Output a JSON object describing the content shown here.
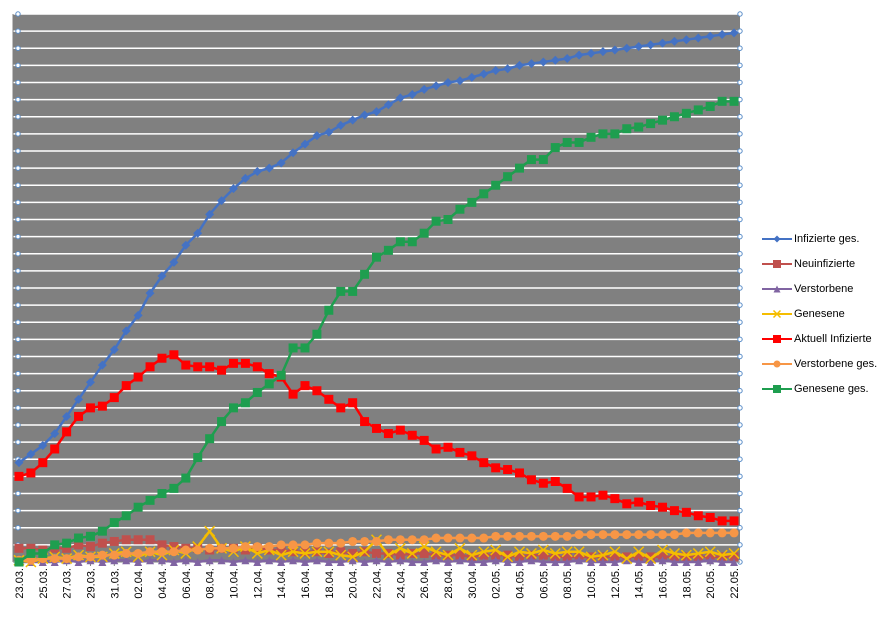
{
  "chart_data": {
    "type": "line",
    "grid": true,
    "legend_position": "right",
    "x_tick_labels": [
      "23.03.",
      "25.03.",
      "27.03.",
      "29.03.",
      "31.03.",
      "02.04.",
      "04.04.",
      "06.04.",
      "08.04.",
      "10.04.",
      "12.04.",
      "14.04.",
      "16.04.",
      "18.04.",
      "20.04.",
      "22.04.",
      "24.04.",
      "26.04.",
      "28.04.",
      "30.04.",
      "02.05.",
      "04.05.",
      "06.05.",
      "08.05.",
      "10.05.",
      "12.05.",
      "14.05.",
      "16.05.",
      "18.05.",
      "20.05.",
      "22.05."
    ],
    "x_start": "23.03.",
    "x_count": 61,
    "ylim": [
      0,
      32
    ],
    "series": [
      {
        "name": "Infizierte ges.",
        "color": "#4472C4",
        "marker": "diamond",
        "values": [
          5.8,
          6.3,
          6.8,
          7.5,
          8.5,
          9.5,
          10.5,
          11.5,
          12.4,
          13.5,
          14.4,
          15.7,
          16.7,
          17.5,
          18.5,
          19.2,
          20.3,
          21.1,
          21.8,
          22.4,
          22.8,
          23.0,
          23.3,
          23.9,
          24.4,
          24.9,
          25.1,
          25.5,
          25.8,
          26.1,
          26.3,
          26.7,
          27.1,
          27.3,
          27.6,
          27.8,
          28.0,
          28.1,
          28.3,
          28.5,
          28.7,
          28.8,
          29.0,
          29.1,
          29.2,
          29.3,
          29.4,
          29.6,
          29.7,
          29.8,
          29.9,
          30.0,
          30.1,
          30.2,
          30.3,
          30.4,
          30.5,
          30.6,
          30.7,
          30.8,
          30.9
        ]
      },
      {
        "name": "Neuinfizierte",
        "color": "#C0504D",
        "marker": "square",
        "values": [
          0.8,
          0.8,
          0.7,
          0.8,
          0.8,
          1.0,
          0.9,
          1.1,
          1.2,
          1.3,
          1.3,
          1.3,
          1.0,
          0.9,
          0.8,
          0.8,
          0.7,
          0.8,
          0.8,
          0.7,
          0.8,
          0.7,
          0.7,
          0.6,
          0.6,
          0.6,
          0.5,
          0.6,
          0.5,
          0.6,
          0.5,
          0.5,
          0.4,
          0.5,
          0.5,
          0.4,
          0.4,
          0.4,
          0.3,
          0.4,
          0.4,
          0.4,
          0.3,
          0.4,
          0.4,
          0.3,
          0.3,
          0.3,
          0.3,
          0.3,
          0.3,
          0.3,
          0.3,
          0.3,
          0.3,
          0.3,
          0.3,
          0.3,
          0.3,
          0.3,
          0.3
        ]
      },
      {
        "name": "Verstorbene",
        "color": "#8064A2",
        "marker": "triangle",
        "values": [
          0.0,
          0.0,
          0.0,
          0.0,
          0.1,
          0.0,
          0.1,
          0.0,
          0.1,
          0.1,
          0.0,
          0.1,
          0.1,
          0.0,
          0.1,
          0.0,
          0.1,
          0.1,
          0.0,
          0.1,
          0.0,
          0.1,
          0.0,
          0.1,
          0.0,
          0.1,
          0.0,
          0.0,
          0.1,
          0.0,
          0.1,
          0.0,
          0.1,
          0.0,
          0.0,
          0.1,
          0.0,
          0.1,
          0.0,
          0.0,
          0.1,
          0.0,
          0.0,
          0.1,
          0.0,
          0.0,
          0.0,
          0.1,
          0.0,
          0.0,
          0.0,
          0.1,
          0.0,
          0.0,
          0.1,
          0.0,
          0.0,
          0.0,
          0.1,
          0.0,
          0.0
        ]
      },
      {
        "name": "Genesene",
        "color": "#F5BD00",
        "marker": "x",
        "values": [
          0.1,
          0.0,
          0.2,
          0.3,
          0.2,
          0.4,
          0.3,
          0.3,
          0.5,
          0.6,
          0.3,
          0.6,
          0.4,
          0.7,
          0.5,
          0.9,
          1.8,
          0.8,
          0.6,
          0.9,
          0.5,
          0.7,
          0.4,
          0.6,
          0.5,
          0.6,
          0.6,
          0.4,
          0.3,
          0.6,
          1.3,
          0.4,
          0.8,
          0.5,
          0.9,
          0.6,
          0.4,
          0.8,
          0.4,
          0.6,
          0.7,
          0.3,
          0.6,
          0.5,
          0.7,
          0.5,
          0.6,
          0.6,
          0.3,
          0.4,
          0.6,
          0.2,
          0.6,
          0.2,
          0.7,
          0.5,
          0.4,
          0.5,
          0.6,
          0.4,
          0.5
        ]
      },
      {
        "name": "Aktuell Infizierte",
        "color": "#FF0000",
        "marker": "square",
        "values": [
          5.0,
          5.2,
          5.8,
          6.6,
          7.6,
          8.5,
          9.0,
          9.1,
          9.6,
          10.3,
          10.8,
          11.4,
          11.9,
          12.1,
          11.5,
          11.4,
          11.4,
          11.2,
          11.6,
          11.6,
          11.4,
          11.0,
          10.8,
          9.8,
          10.3,
          10.0,
          9.5,
          9.0,
          9.3,
          8.2,
          7.8,
          7.5,
          7.7,
          7.4,
          7.1,
          6.6,
          6.7,
          6.4,
          6.2,
          5.8,
          5.5,
          5.4,
          5.2,
          4.8,
          4.6,
          4.7,
          4.3,
          3.8,
          3.8,
          3.9,
          3.7,
          3.4,
          3.5,
          3.3,
          3.2,
          3.0,
          2.9,
          2.7,
          2.6,
          2.4,
          2.4
        ]
      },
      {
        "name": "Verstorbene ges.",
        "color": "#F79646",
        "marker": "circle",
        "values": [
          0.1,
          0.1,
          0.2,
          0.2,
          0.2,
          0.3,
          0.3,
          0.4,
          0.4,
          0.5,
          0.5,
          0.6,
          0.6,
          0.6,
          0.7,
          0.7,
          0.8,
          0.8,
          0.8,
          0.9,
          0.9,
          0.9,
          1.0,
          1.0,
          1.0,
          1.1,
          1.1,
          1.1,
          1.2,
          1.2,
          1.2,
          1.3,
          1.3,
          1.3,
          1.3,
          1.4,
          1.4,
          1.4,
          1.4,
          1.4,
          1.5,
          1.5,
          1.5,
          1.5,
          1.5,
          1.5,
          1.5,
          1.6,
          1.6,
          1.6,
          1.6,
          1.6,
          1.6,
          1.6,
          1.6,
          1.6,
          1.7,
          1.7,
          1.7,
          1.7,
          1.7
        ]
      },
      {
        "name": "Genesene ges.",
        "color": "#1E9E4F",
        "marker": "square",
        "values": [
          0.0,
          0.5,
          0.5,
          1.0,
          1.1,
          1.4,
          1.5,
          1.8,
          2.3,
          2.7,
          3.2,
          3.6,
          4.0,
          4.3,
          4.9,
          6.1,
          7.2,
          8.2,
          9.0,
          9.3,
          9.9,
          10.4,
          10.9,
          12.5,
          12.5,
          13.3,
          14.7,
          15.8,
          15.8,
          16.8,
          17.8,
          18.2,
          18.7,
          18.7,
          19.2,
          19.9,
          20.0,
          20.6,
          21.0,
          21.5,
          22.0,
          22.5,
          23.0,
          23.5,
          23.5,
          24.2,
          24.5,
          24.5,
          24.8,
          25.0,
          25.0,
          25.3,
          25.4,
          25.6,
          25.8,
          26.0,
          26.2,
          26.4,
          26.6,
          26.9,
          26.9
        ]
      }
    ]
  }
}
